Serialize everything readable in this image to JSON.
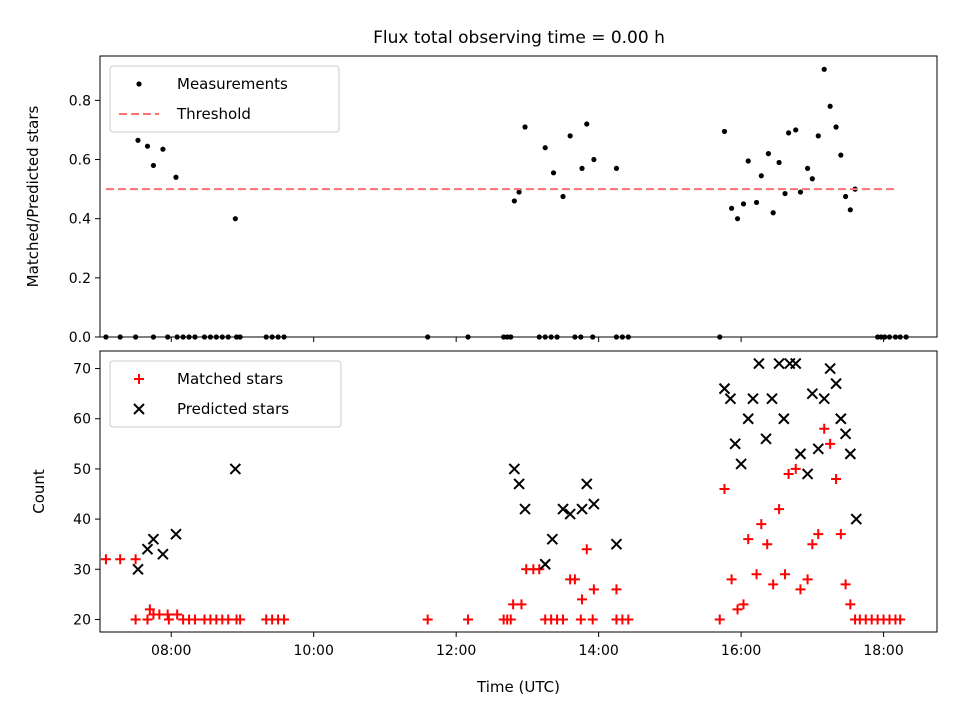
{
  "title": "Flux total observing time = 0.00 h",
  "chart_data": [
    {
      "type": "scatter",
      "ylabel": "Matched/Predicted stars",
      "xlabel": "",
      "xlim": [
        "07:00",
        "18:45"
      ],
      "ylim": [
        0,
        0.95
      ],
      "yticks": [
        "0.0",
        "0.2",
        "0.4",
        "0.6",
        "0.8"
      ],
      "legend_position": "upper-left",
      "grid": false,
      "series": [
        {
          "name": "Measurements",
          "marker": "dot",
          "color": "#000000",
          "points": [
            [
              "07:05",
              0
            ],
            [
              "07:17",
              0
            ],
            [
              "07:30",
              0
            ],
            [
              "07:45",
              0
            ],
            [
              "07:57",
              0
            ],
            [
              "08:05",
              0
            ],
            [
              "08:10",
              0
            ],
            [
              "08:15",
              0
            ],
            [
              "08:20",
              0
            ],
            [
              "08:28",
              0
            ],
            [
              "08:33",
              0
            ],
            [
              "08:38",
              0
            ],
            [
              "08:43",
              0
            ],
            [
              "08:48",
              0
            ],
            [
              "08:55",
              0
            ],
            [
              "08:58",
              0
            ],
            [
              "09:20",
              0
            ],
            [
              "09:25",
              0
            ],
            [
              "09:30",
              0
            ],
            [
              "09:35",
              0
            ],
            [
              "11:36",
              0
            ],
            [
              "12:10",
              0
            ],
            [
              "12:40",
              0
            ],
            [
              "12:43",
              0
            ],
            [
              "12:46",
              0
            ],
            [
              "13:10",
              0
            ],
            [
              "13:15",
              0
            ],
            [
              "13:20",
              0
            ],
            [
              "13:25",
              0
            ],
            [
              "13:40",
              0
            ],
            [
              "13:45",
              0
            ],
            [
              "13:55",
              0
            ],
            [
              "14:15",
              0
            ],
            [
              "14:20",
              0
            ],
            [
              "14:25",
              0
            ],
            [
              "15:42",
              0
            ],
            [
              "17:55",
              0
            ],
            [
              "17:58",
              0
            ],
            [
              "18:01",
              0
            ],
            [
              "18:05",
              0
            ],
            [
              "18:10",
              0
            ],
            [
              "18:14",
              0
            ],
            [
              "18:19",
              0
            ],
            [
              "07:32",
              0.665
            ],
            [
              "07:40",
              0.645
            ],
            [
              "07:45",
              0.58
            ],
            [
              "07:53",
              0.635
            ],
            [
              "08:04",
              0.54
            ],
            [
              "08:54",
              0.4
            ],
            [
              "12:49",
              0.46
            ],
            [
              "12:53",
              0.49
            ],
            [
              "12:58",
              0.71
            ],
            [
              "13:15",
              0.64
            ],
            [
              "13:22",
              0.555
            ],
            [
              "13:30",
              0.475
            ],
            [
              "13:36",
              0.68
            ],
            [
              "13:46",
              0.57
            ],
            [
              "13:50",
              0.72
            ],
            [
              "13:56",
              0.6
            ],
            [
              "14:15",
              0.57
            ],
            [
              "15:46",
              0.695
            ],
            [
              "15:52",
              0.435
            ],
            [
              "15:57",
              0.4
            ],
            [
              "16:02",
              0.45
            ],
            [
              "16:06",
              0.595
            ],
            [
              "16:13",
              0.455
            ],
            [
              "16:17",
              0.545
            ],
            [
              "16:23",
              0.62
            ],
            [
              "16:27",
              0.42
            ],
            [
              "16:32",
              0.59
            ],
            [
              "16:37",
              0.485
            ],
            [
              "16:40",
              0.69
            ],
            [
              "16:46",
              0.7
            ],
            [
              "16:50",
              0.49
            ],
            [
              "16:56",
              0.57
            ],
            [
              "17:00",
              0.535
            ],
            [
              "17:05",
              0.68
            ],
            [
              "17:10",
              0.905
            ],
            [
              "17:15",
              0.78
            ],
            [
              "17:20",
              0.71
            ],
            [
              "17:24",
              0.615
            ],
            [
              "17:28",
              0.475
            ],
            [
              "17:32",
              0.43
            ],
            [
              "17:36",
              0.5
            ]
          ]
        },
        {
          "name": "Threshold",
          "marker": "dashed-line",
          "color": "#ff7070",
          "points": [
            [
              "07:05",
              0.5
            ],
            [
              "18:10",
              0.5
            ]
          ]
        }
      ]
    },
    {
      "type": "scatter",
      "ylabel": "Count",
      "xlabel": "Time (UTC)",
      "xlim": [
        "07:00",
        "18:45"
      ],
      "ylim": [
        17.5,
        73.5
      ],
      "yticks": [
        "20",
        "30",
        "40",
        "50",
        "60",
        "70"
      ],
      "xticks": [
        "08:00",
        "10:00",
        "12:00",
        "14:00",
        "16:00",
        "18:00"
      ],
      "legend_position": "upper-left",
      "grid": false,
      "series": [
        {
          "name": "Matched stars",
          "marker": "plus",
          "color": "#ff0000",
          "points": [
            [
              "07:05",
              32
            ],
            [
              "07:17",
              32
            ],
            [
              "07:30",
              32
            ],
            [
              "07:30",
              20
            ],
            [
              "07:40",
              20
            ],
            [
              "07:42",
              22
            ],
            [
              "07:45",
              21
            ],
            [
              "07:50",
              21
            ],
            [
              "07:57",
              21
            ],
            [
              "07:58",
              20
            ],
            [
              "08:05",
              21
            ],
            [
              "08:10",
              20
            ],
            [
              "08:15",
              20
            ],
            [
              "08:20",
              20
            ],
            [
              "08:28",
              20
            ],
            [
              "08:33",
              20
            ],
            [
              "08:38",
              20
            ],
            [
              "08:43",
              20
            ],
            [
              "08:48",
              20
            ],
            [
              "08:55",
              20
            ],
            [
              "08:58",
              20
            ],
            [
              "09:20",
              20
            ],
            [
              "09:25",
              20
            ],
            [
              "09:30",
              20
            ],
            [
              "09:35",
              20
            ],
            [
              "11:36",
              20
            ],
            [
              "12:10",
              20
            ],
            [
              "12:40",
              20
            ],
            [
              "12:43",
              20
            ],
            [
              "12:46",
              20
            ],
            [
              "12:48",
              23
            ],
            [
              "12:55",
              23
            ],
            [
              "12:59",
              30
            ],
            [
              "13:05",
              30
            ],
            [
              "13:10",
              30
            ],
            [
              "13:15",
              20
            ],
            [
              "13:20",
              20
            ],
            [
              "13:25",
              20
            ],
            [
              "13:30",
              20
            ],
            [
              "13:36",
              28
            ],
            [
              "13:40",
              28
            ],
            [
              "13:45",
              20
            ],
            [
              "13:46",
              24
            ],
            [
              "13:50",
              34
            ],
            [
              "13:55",
              20
            ],
            [
              "13:56",
              26
            ],
            [
              "14:15",
              26
            ],
            [
              "14:15",
              20
            ],
            [
              "14:20",
              20
            ],
            [
              "14:25",
              20
            ],
            [
              "15:42",
              20
            ],
            [
              "15:46",
              46
            ],
            [
              "15:52",
              28
            ],
            [
              "15:57",
              22
            ],
            [
              "16:02",
              23
            ],
            [
              "16:06",
              36
            ],
            [
              "16:13",
              29
            ],
            [
              "16:17",
              39
            ],
            [
              "16:22",
              35
            ],
            [
              "16:27",
              27
            ],
            [
              "16:32",
              42
            ],
            [
              "16:37",
              29
            ],
            [
              "16:40",
              49
            ],
            [
              "16:46",
              50
            ],
            [
              "16:50",
              26
            ],
            [
              "16:56",
              28
            ],
            [
              "17:00",
              35
            ],
            [
              "17:05",
              37
            ],
            [
              "17:10",
              58
            ],
            [
              "17:15",
              55
            ],
            [
              "17:20",
              48
            ],
            [
              "17:24",
              37
            ],
            [
              "17:28",
              27
            ],
            [
              "17:32",
              23
            ],
            [
              "17:36",
              20
            ],
            [
              "17:40",
              20
            ],
            [
              "17:45",
              20
            ],
            [
              "17:50",
              20
            ],
            [
              "17:55",
              20
            ],
            [
              "18:00",
              20
            ],
            [
              "18:05",
              20
            ],
            [
              "18:10",
              20
            ],
            [
              "18:14",
              20
            ]
          ]
        },
        {
          "name": "Predicted stars",
          "marker": "x",
          "color": "#000000",
          "points": [
            [
              "07:32",
              30
            ],
            [
              "07:40",
              34
            ],
            [
              "07:45",
              36
            ],
            [
              "07:53",
              33
            ],
            [
              "08:04",
              37
            ],
            [
              "08:54",
              50
            ],
            [
              "12:49",
              50
            ],
            [
              "12:53",
              47
            ],
            [
              "12:58",
              42
            ],
            [
              "13:15",
              31
            ],
            [
              "13:21",
              36
            ],
            [
              "13:30",
              42
            ],
            [
              "13:36",
              41
            ],
            [
              "13:46",
              42
            ],
            [
              "13:50",
              47
            ],
            [
              "13:56",
              43
            ],
            [
              "14:15",
              35
            ],
            [
              "15:46",
              66
            ],
            [
              "15:51",
              64
            ],
            [
              "15:55",
              55
            ],
            [
              "16:00",
              51
            ],
            [
              "16:06",
              60
            ],
            [
              "16:10",
              64
            ],
            [
              "16:15",
              71
            ],
            [
              "16:21",
              56
            ],
            [
              "16:26",
              64
            ],
            [
              "16:32",
              71
            ],
            [
              "16:36",
              60
            ],
            [
              "16:41",
              71
            ],
            [
              "16:46",
              71
            ],
            [
              "16:50",
              53
            ],
            [
              "16:56",
              49
            ],
            [
              "17:00",
              65
            ],
            [
              "17:05",
              54
            ],
            [
              "17:10",
              64
            ],
            [
              "17:15",
              70
            ],
            [
              "17:20",
              67
            ],
            [
              "17:24",
              60
            ],
            [
              "17:28",
              57
            ],
            [
              "17:32",
              53
            ],
            [
              "17:37",
              40
            ]
          ]
        }
      ]
    }
  ]
}
